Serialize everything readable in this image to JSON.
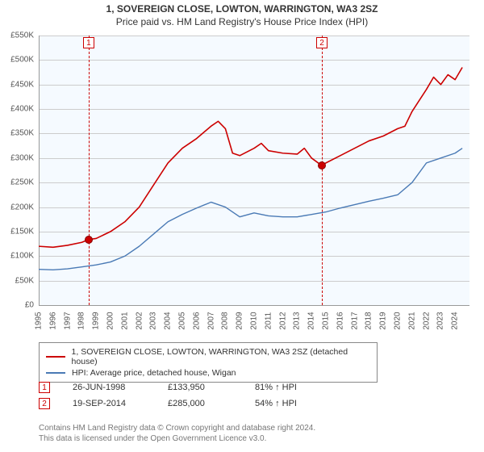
{
  "title": {
    "line1": "1, SOVEREIGN CLOSE, LOWTON, WARRINGTON, WA3 2SZ",
    "line2": "Price paid vs. HM Land Registry's House Price Index (HPI)"
  },
  "chart": {
    "type": "line",
    "background_color": "#f5faff",
    "grid_color": "#cccccc",
    "axis_color": "#999999",
    "xlim": [
      1995,
      2025
    ],
    "ylim": [
      0,
      550000
    ],
    "ytick_step": 50000,
    "xtick_labels": [
      "1995",
      "1996",
      "1997",
      "1998",
      "1999",
      "2000",
      "2001",
      "2002",
      "2003",
      "2004",
      "2005",
      "2006",
      "2007",
      "2008",
      "2009",
      "2010",
      "2011",
      "2012",
      "2013",
      "2014",
      "2015",
      "2016",
      "2017",
      "2018",
      "2019",
      "2020",
      "2021",
      "2022",
      "2023",
      "2024"
    ],
    "series": [
      {
        "name": "property",
        "label": "1, SOVEREIGN CLOSE, LOWTON, WARRINGTON, WA3 2SZ (detached house)",
        "color": "#cc0000",
        "line_width": 1.6,
        "data": [
          [
            1995,
            120000
          ],
          [
            1996,
            118000
          ],
          [
            1997,
            122000
          ],
          [
            1998,
            128000
          ],
          [
            1998.5,
            133950
          ],
          [
            1999,
            136000
          ],
          [
            2000,
            150000
          ],
          [
            2001,
            170000
          ],
          [
            2002,
            200000
          ],
          [
            2003,
            245000
          ],
          [
            2004,
            290000
          ],
          [
            2005,
            320000
          ],
          [
            2006,
            340000
          ],
          [
            2007,
            365000
          ],
          [
            2007.5,
            375000
          ],
          [
            2008,
            360000
          ],
          [
            2008.5,
            310000
          ],
          [
            2009,
            305000
          ],
          [
            2010,
            320000
          ],
          [
            2010.5,
            330000
          ],
          [
            2011,
            315000
          ],
          [
            2012,
            310000
          ],
          [
            2013,
            308000
          ],
          [
            2013.5,
            320000
          ],
          [
            2014,
            300000
          ],
          [
            2014.7,
            285000
          ],
          [
            2015,
            290000
          ],
          [
            2016,
            305000
          ],
          [
            2017,
            320000
          ],
          [
            2018,
            335000
          ],
          [
            2019,
            345000
          ],
          [
            2020,
            360000
          ],
          [
            2020.5,
            365000
          ],
          [
            2021,
            395000
          ],
          [
            2022,
            440000
          ],
          [
            2022.5,
            465000
          ],
          [
            2023,
            450000
          ],
          [
            2023.5,
            470000
          ],
          [
            2024,
            460000
          ],
          [
            2024.5,
            485000
          ]
        ]
      },
      {
        "name": "hpi",
        "label": "HPI: Average price, detached house, Wigan",
        "color": "#4a7ab5",
        "line_width": 1.4,
        "data": [
          [
            1995,
            73000
          ],
          [
            1996,
            72000
          ],
          [
            1997,
            74000
          ],
          [
            1998,
            78000
          ],
          [
            1999,
            82000
          ],
          [
            2000,
            88000
          ],
          [
            2001,
            100000
          ],
          [
            2002,
            120000
          ],
          [
            2003,
            145000
          ],
          [
            2004,
            170000
          ],
          [
            2005,
            185000
          ],
          [
            2006,
            198000
          ],
          [
            2007,
            210000
          ],
          [
            2008,
            200000
          ],
          [
            2009,
            180000
          ],
          [
            2010,
            188000
          ],
          [
            2011,
            182000
          ],
          [
            2012,
            180000
          ],
          [
            2013,
            180000
          ],
          [
            2014,
            185000
          ],
          [
            2015,
            190000
          ],
          [
            2016,
            198000
          ],
          [
            2017,
            205000
          ],
          [
            2018,
            212000
          ],
          [
            2019,
            218000
          ],
          [
            2020,
            225000
          ],
          [
            2021,
            250000
          ],
          [
            2022,
            290000
          ],
          [
            2023,
            300000
          ],
          [
            2024,
            310000
          ],
          [
            2024.5,
            320000
          ]
        ]
      }
    ],
    "sale_markers": [
      {
        "n": "1",
        "year": 1998.48,
        "price": 133950
      },
      {
        "n": "2",
        "year": 2014.72,
        "price": 285000
      }
    ]
  },
  "legend": {
    "row1_color": "#cc0000",
    "row1_label": "1, SOVEREIGN CLOSE, LOWTON, WARRINGTON, WA3 2SZ (detached house)",
    "row2_color": "#4a7ab5",
    "row2_label": "HPI: Average price, detached house, Wigan"
  },
  "sales": [
    {
      "n": "1",
      "date": "26-JUN-1998",
      "price": "£133,950",
      "delta": "81% ↑ HPI"
    },
    {
      "n": "2",
      "date": "19-SEP-2014",
      "price": "£285,000",
      "delta": "54% ↑ HPI"
    }
  ],
  "footer": {
    "line1": "Contains HM Land Registry data © Crown copyright and database right 2024.",
    "line2": "This data is licensed under the Open Government Licence v3.0."
  },
  "ytick_labels": [
    "£0",
    "£50K",
    "£100K",
    "£150K",
    "£200K",
    "£250K",
    "£300K",
    "£350K",
    "£400K",
    "£450K",
    "£500K",
    "£550K"
  ]
}
